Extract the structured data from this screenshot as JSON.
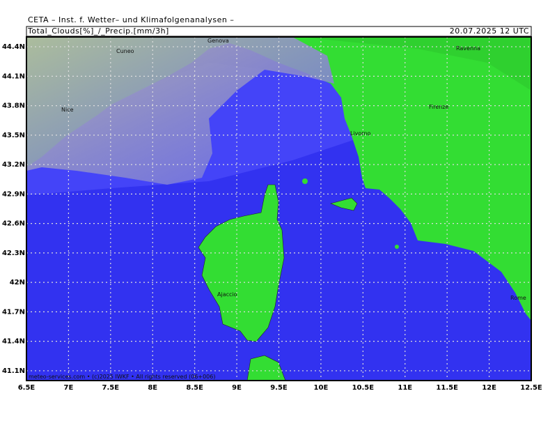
{
  "header": {
    "title": "CETA – Inst. f. Wetter– und Klimafolgenanalysen –",
    "product": "Total_Clouds[%]_/_Precip.[mm/3h]",
    "valid_time": "20.07.2025 12 UTC"
  },
  "map": {
    "lon_range": [
      6.5,
      12.5
    ],
    "lat_range": [
      41.0,
      44.5
    ],
    "lon_ticks": [
      {
        "value": 6.5,
        "label": "6.5E"
      },
      {
        "value": 7,
        "label": "7E"
      },
      {
        "value": 7.5,
        "label": "7.5E"
      },
      {
        "value": 8,
        "label": "8E"
      },
      {
        "value": 8.5,
        "label": "8.5E"
      },
      {
        "value": 9,
        "label": "9E"
      },
      {
        "value": 9.5,
        "label": "9.5E"
      },
      {
        "value": 10,
        "label": "10E"
      },
      {
        "value": 10.5,
        "label": "10.5E"
      },
      {
        "value": 11,
        "label": "11E"
      },
      {
        "value": 11.5,
        "label": "11.5E"
      },
      {
        "value": 12,
        "label": "12E"
      },
      {
        "value": 12.5,
        "label": "12.5E"
      }
    ],
    "lat_ticks": [
      {
        "value": 44.4,
        "label": "44.4N"
      },
      {
        "value": 44.1,
        "label": "44.1N"
      },
      {
        "value": 43.8,
        "label": "43.8N"
      },
      {
        "value": 43.5,
        "label": "43.5N"
      },
      {
        "value": 43.2,
        "label": "43.2N"
      },
      {
        "value": 42.9,
        "label": "42.9N"
      },
      {
        "value": 42.6,
        "label": "42.6N"
      },
      {
        "value": 42.3,
        "label": "42.3N"
      },
      {
        "value": 42,
        "label": "42N"
      },
      {
        "value": 41.7,
        "label": "41.7N"
      },
      {
        "value": 41.4,
        "label": "41.4N"
      },
      {
        "value": 41.1,
        "label": "41.1N"
      }
    ],
    "cities": [
      "Genova",
      "Cuneo",
      "Nice",
      "Livorno",
      "Firenze",
      "Ravenna",
      "Ajaccio",
      "Rome"
    ]
  },
  "footer": {
    "credit": "meteo-services.com • (c)2025 IWKF • All rights reserved (06+006)"
  }
}
